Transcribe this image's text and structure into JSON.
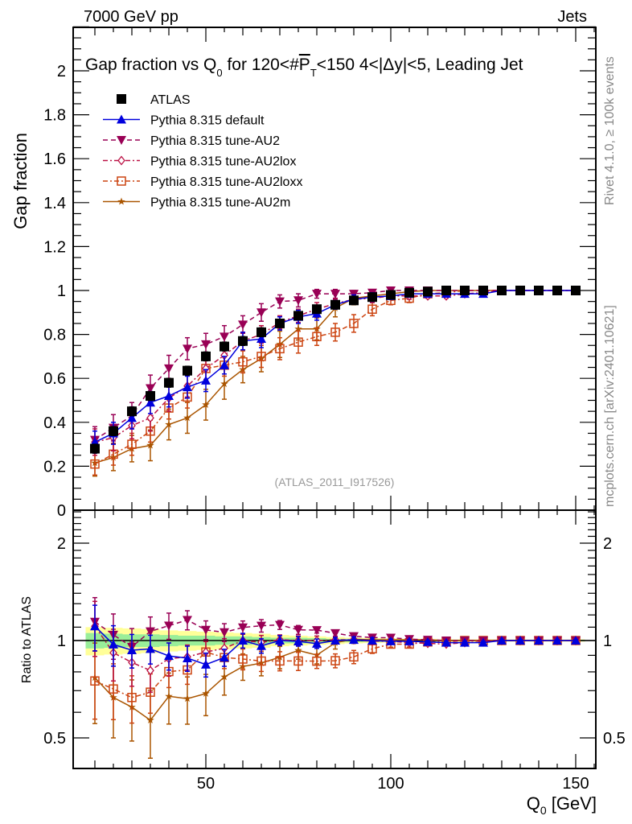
{
  "header": {
    "left": "7000 GeV pp",
    "right": "Jets",
    "side_top": "Rivet 4.1.0, ≥ 100k events",
    "side_bottom": "mcplots.cern.ch [arXiv:2401.10621]",
    "watermark": "(ATLAS_2011_I917526)"
  },
  "colors": {
    "ATLAS": "#000000",
    "default": "#0000dd",
    "AU2": "#990055",
    "AU2lox": "#bb1144",
    "AU2loxx": "#cc4411",
    "AU2m": "#aa5500",
    "band_outer": "#ffff99",
    "band_inner": "#99ee99"
  },
  "chart_data": [
    {
      "type": "line",
      "panel": "main",
      "title": "Gap fraction vs Q0 for 120<#P_T<150  4<|Δy|<5, Leading Jet",
      "title_parts": {
        "pre": "Gap fraction vs Q",
        "sub": "0",
        "mid": " for 120<#",
        "over": "P",
        "oversub": "T",
        "post": "<150  4<|Δy|<5, Leading Jet"
      },
      "xlabel": "Q0 [GeV]",
      "ylabel": "Gap fraction",
      "xlim": [
        15,
        155
      ],
      "ylim": [
        0,
        2.2
      ],
      "yticks": [
        0,
        0.2,
        0.4,
        0.6,
        0.8,
        1,
        1.2,
        1.4,
        1.6,
        1.8,
        2
      ],
      "ytick_labels": [
        "0",
        "0.2",
        "0.4",
        "0.6",
        "0.8",
        "1",
        "1.2",
        "1.4",
        "1.6",
        "1.8",
        "2"
      ],
      "x": [
        20,
        25,
        30,
        35,
        40,
        45,
        50,
        55,
        60,
        65,
        70,
        75,
        80,
        85,
        90,
        95,
        100,
        105,
        110,
        115,
        120,
        125,
        130,
        135,
        140,
        145,
        150
      ],
      "legend": [
        "ATLAS",
        "Pythia 8.315 default",
        "Pythia 8.315 tune-AU2",
        "Pythia 8.315 tune-AU2lox",
        "Pythia 8.315 tune-AU2loxx",
        "Pythia 8.315 tune-AU2m"
      ],
      "legend_position": "top-left",
      "series": [
        {
          "name": "ATLAS",
          "key": "ATLAS",
          "marker": "square-filled",
          "line": "none",
          "values": [
            0.28,
            0.36,
            0.45,
            0.52,
            0.58,
            0.635,
            0.7,
            0.745,
            0.77,
            0.81,
            0.85,
            0.885,
            0.915,
            0.935,
            0.955,
            0.97,
            0.98,
            0.99,
            0.995,
            1,
            1,
            1,
            1,
            1,
            1,
            1,
            1
          ],
          "errors": [
            0.02,
            0.02,
            0.02,
            0.02,
            0.02,
            0.02,
            0.02,
            0.02,
            0.02,
            0.02,
            0.015,
            0.015,
            0.015,
            0.01,
            0.01,
            0.01,
            0.01,
            0.01,
            0.005,
            0.005,
            0.005,
            0.005,
            0.005,
            0.005,
            0.005,
            0.005,
            0.005
          ]
        },
        {
          "name": "Pythia 8.315 default",
          "key": "default",
          "marker": "triangle-up-filled",
          "line": "solid",
          "values": [
            0.31,
            0.35,
            0.42,
            0.49,
            0.52,
            0.56,
            0.59,
            0.66,
            0.77,
            0.78,
            0.85,
            0.88,
            0.895,
            0.935,
            0.96,
            0.97,
            0.975,
            0.985,
            0.985,
            0.985,
            0.985,
            0.985,
            1,
            1,
            1,
            1,
            1
          ],
          "errors": [
            0.05,
            0.05,
            0.05,
            0.05,
            0.05,
            0.05,
            0.05,
            0.04,
            0.04,
            0.04,
            0.03,
            0.03,
            0.03,
            0.02,
            0.02,
            0.02,
            0.015,
            0.01,
            0.01,
            0.01,
            0.01,
            0.01,
            0.005,
            0.005,
            0.005,
            0.005,
            0.005
          ]
        },
        {
          "name": "Pythia 8.315 tune-AU2",
          "key": "AU2",
          "marker": "triangle-down-filled",
          "line": "dashed",
          "values": [
            0.32,
            0.375,
            0.43,
            0.555,
            0.645,
            0.735,
            0.755,
            0.79,
            0.845,
            0.9,
            0.95,
            0.955,
            0.985,
            0.985,
            0.985,
            0.99,
            1.0,
            1.0,
            1.0,
            1.0,
            1.0,
            1.0,
            1,
            1,
            1,
            1,
            1
          ],
          "errors": [
            0.06,
            0.06,
            0.06,
            0.06,
            0.06,
            0.05,
            0.05,
            0.05,
            0.04,
            0.04,
            0.03,
            0.03,
            0.02,
            0.02,
            0.015,
            0.01,
            0.01,
            0.01,
            0.01,
            0.005,
            0.005,
            0.005,
            0.005,
            0.005,
            0.005,
            0.005,
            0.005
          ]
        },
        {
          "name": "Pythia 8.315 tune-AU2lox",
          "key": "AU2lox",
          "marker": "diamond-open",
          "line": "dash-dot",
          "values": [
            0.31,
            0.33,
            0.385,
            0.42,
            0.51,
            0.565,
            0.645,
            0.705,
            0.77,
            0.8,
            0.855,
            0.885,
            0.915,
            0.94,
            0.96,
            0.965,
            0.975,
            0.975,
            0.975,
            0.975,
            0.985,
            0.99,
            1,
            1,
            1,
            1,
            1
          ],
          "errors": [
            0.06,
            0.06,
            0.06,
            0.06,
            0.06,
            0.05,
            0.05,
            0.05,
            0.04,
            0.04,
            0.03,
            0.03,
            0.03,
            0.02,
            0.02,
            0.02,
            0.015,
            0.015,
            0.01,
            0.01,
            0.01,
            0.01,
            0.005,
            0.005,
            0.005,
            0.005,
            0.005
          ]
        },
        {
          "name": "Pythia 8.315 tune-AU2loxx",
          "key": "AU2loxx",
          "marker": "square-open",
          "line": "dash-dot",
          "values": [
            0.21,
            0.255,
            0.3,
            0.36,
            0.465,
            0.515,
            0.645,
            0.66,
            0.675,
            0.7,
            0.735,
            0.765,
            0.79,
            0.81,
            0.85,
            0.915,
            0.955,
            0.965,
            0.985,
            0.99,
            1,
            1,
            1,
            1,
            1,
            1,
            1
          ],
          "errors": [
            0.05,
            0.05,
            0.05,
            0.05,
            0.05,
            0.05,
            0.05,
            0.05,
            0.05,
            0.05,
            0.05,
            0.05,
            0.04,
            0.04,
            0.04,
            0.03,
            0.02,
            0.02,
            0.01,
            0.01,
            0.005,
            0.005,
            0.005,
            0.005,
            0.005,
            0.005,
            0.005
          ]
        },
        {
          "name": "Pythia 8.315 tune-AU2m",
          "key": "AU2m",
          "marker": "star",
          "line": "solid",
          "values": [
            0.215,
            0.24,
            0.28,
            0.295,
            0.39,
            0.42,
            0.48,
            0.575,
            0.64,
            0.69,
            0.755,
            0.825,
            0.825,
            0.92,
            0.965,
            0.975,
            0.985,
            0.995,
            1,
            1,
            1,
            1,
            1,
            1,
            1,
            1,
            1
          ],
          "errors": [
            0.06,
            0.06,
            0.06,
            0.07,
            0.07,
            0.07,
            0.07,
            0.07,
            0.06,
            0.06,
            0.06,
            0.05,
            0.05,
            0.04,
            0.03,
            0.02,
            0.015,
            0.01,
            0.005,
            0.005,
            0.005,
            0.005,
            0.005,
            0.005,
            0.005,
            0.005,
            0.005
          ]
        }
      ]
    },
    {
      "type": "line",
      "panel": "ratio",
      "ylabel": "Ratio to ATLAS",
      "yscale": "log",
      "ylim": [
        0.4,
        2.53
      ],
      "yticks": [
        0.5,
        1,
        2
      ],
      "ytick_labels": [
        "0.5",
        "1",
        "2"
      ],
      "xticks": [
        50,
        100,
        150
      ],
      "xtick_labels": [
        "50",
        "100",
        "150"
      ],
      "reference": "ATLAS",
      "band_inner_rel": [
        0.055,
        0.05,
        0.045,
        0.045,
        0.04,
        0.035,
        0.035,
        0.03,
        0.03,
        0.025,
        0.02,
        0.02,
        0.017,
        0.012,
        0.01,
        0.01,
        0.008,
        0.007,
        0.005,
        0.005,
        0.005,
        0.005,
        0.005,
        0.005,
        0.005,
        0.005,
        0.005
      ],
      "band_outer_rel": [
        0.1,
        0.095,
        0.09,
        0.085,
        0.075,
        0.07,
        0.065,
        0.06,
        0.055,
        0.05,
        0.04,
        0.035,
        0.03,
        0.025,
        0.02,
        0.018,
        0.015,
        0.012,
        0.01,
        0.008,
        0.008,
        0.008,
        0.008,
        0.008,
        0.008,
        0.008,
        0.008
      ]
    }
  ]
}
